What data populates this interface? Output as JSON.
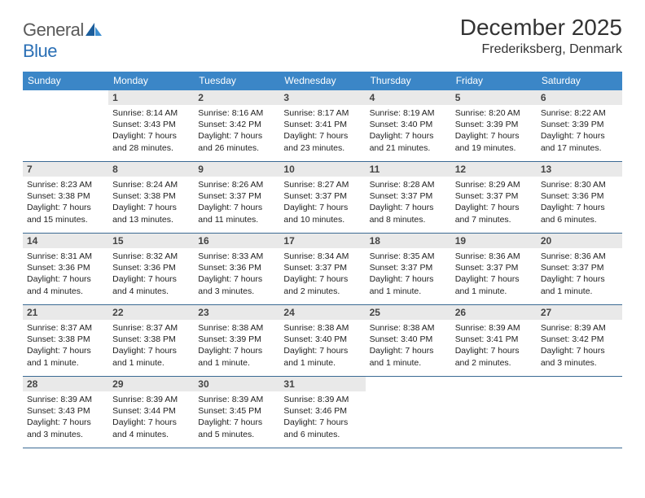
{
  "brand": {
    "part1": "General",
    "part2": "Blue"
  },
  "title": "December 2025",
  "location": "Frederiksberg, Denmark",
  "colors": {
    "header_bg": "#3b86c7",
    "header_fg": "#ffffff",
    "daynum_bg": "#e9e9e9",
    "rule": "#3b6a94",
    "logo_gray": "#5a5a5a",
    "logo_blue": "#2a6fb5",
    "sail_dark": "#1b5d9b",
    "sail_light": "#3d8fd1"
  },
  "weekdays": [
    "Sunday",
    "Monday",
    "Tuesday",
    "Wednesday",
    "Thursday",
    "Friday",
    "Saturday"
  ],
  "weeks": [
    [
      {
        "n": "",
        "sr": "",
        "ss": "",
        "dl": ""
      },
      {
        "n": "1",
        "sr": "Sunrise: 8:14 AM",
        "ss": "Sunset: 3:43 PM",
        "dl": "Daylight: 7 hours and 28 minutes."
      },
      {
        "n": "2",
        "sr": "Sunrise: 8:16 AM",
        "ss": "Sunset: 3:42 PM",
        "dl": "Daylight: 7 hours and 26 minutes."
      },
      {
        "n": "3",
        "sr": "Sunrise: 8:17 AM",
        "ss": "Sunset: 3:41 PM",
        "dl": "Daylight: 7 hours and 23 minutes."
      },
      {
        "n": "4",
        "sr": "Sunrise: 8:19 AM",
        "ss": "Sunset: 3:40 PM",
        "dl": "Daylight: 7 hours and 21 minutes."
      },
      {
        "n": "5",
        "sr": "Sunrise: 8:20 AM",
        "ss": "Sunset: 3:39 PM",
        "dl": "Daylight: 7 hours and 19 minutes."
      },
      {
        "n": "6",
        "sr": "Sunrise: 8:22 AM",
        "ss": "Sunset: 3:39 PM",
        "dl": "Daylight: 7 hours and 17 minutes."
      }
    ],
    [
      {
        "n": "7",
        "sr": "Sunrise: 8:23 AM",
        "ss": "Sunset: 3:38 PM",
        "dl": "Daylight: 7 hours and 15 minutes."
      },
      {
        "n": "8",
        "sr": "Sunrise: 8:24 AM",
        "ss": "Sunset: 3:38 PM",
        "dl": "Daylight: 7 hours and 13 minutes."
      },
      {
        "n": "9",
        "sr": "Sunrise: 8:26 AM",
        "ss": "Sunset: 3:37 PM",
        "dl": "Daylight: 7 hours and 11 minutes."
      },
      {
        "n": "10",
        "sr": "Sunrise: 8:27 AM",
        "ss": "Sunset: 3:37 PM",
        "dl": "Daylight: 7 hours and 10 minutes."
      },
      {
        "n": "11",
        "sr": "Sunrise: 8:28 AM",
        "ss": "Sunset: 3:37 PM",
        "dl": "Daylight: 7 hours and 8 minutes."
      },
      {
        "n": "12",
        "sr": "Sunrise: 8:29 AM",
        "ss": "Sunset: 3:37 PM",
        "dl": "Daylight: 7 hours and 7 minutes."
      },
      {
        "n": "13",
        "sr": "Sunrise: 8:30 AM",
        "ss": "Sunset: 3:36 PM",
        "dl": "Daylight: 7 hours and 6 minutes."
      }
    ],
    [
      {
        "n": "14",
        "sr": "Sunrise: 8:31 AM",
        "ss": "Sunset: 3:36 PM",
        "dl": "Daylight: 7 hours and 4 minutes."
      },
      {
        "n": "15",
        "sr": "Sunrise: 8:32 AM",
        "ss": "Sunset: 3:36 PM",
        "dl": "Daylight: 7 hours and 4 minutes."
      },
      {
        "n": "16",
        "sr": "Sunrise: 8:33 AM",
        "ss": "Sunset: 3:36 PM",
        "dl": "Daylight: 7 hours and 3 minutes."
      },
      {
        "n": "17",
        "sr": "Sunrise: 8:34 AM",
        "ss": "Sunset: 3:37 PM",
        "dl": "Daylight: 7 hours and 2 minutes."
      },
      {
        "n": "18",
        "sr": "Sunrise: 8:35 AM",
        "ss": "Sunset: 3:37 PM",
        "dl": "Daylight: 7 hours and 1 minute."
      },
      {
        "n": "19",
        "sr": "Sunrise: 8:36 AM",
        "ss": "Sunset: 3:37 PM",
        "dl": "Daylight: 7 hours and 1 minute."
      },
      {
        "n": "20",
        "sr": "Sunrise: 8:36 AM",
        "ss": "Sunset: 3:37 PM",
        "dl": "Daylight: 7 hours and 1 minute."
      }
    ],
    [
      {
        "n": "21",
        "sr": "Sunrise: 8:37 AM",
        "ss": "Sunset: 3:38 PM",
        "dl": "Daylight: 7 hours and 1 minute."
      },
      {
        "n": "22",
        "sr": "Sunrise: 8:37 AM",
        "ss": "Sunset: 3:38 PM",
        "dl": "Daylight: 7 hours and 1 minute."
      },
      {
        "n": "23",
        "sr": "Sunrise: 8:38 AM",
        "ss": "Sunset: 3:39 PM",
        "dl": "Daylight: 7 hours and 1 minute."
      },
      {
        "n": "24",
        "sr": "Sunrise: 8:38 AM",
        "ss": "Sunset: 3:40 PM",
        "dl": "Daylight: 7 hours and 1 minute."
      },
      {
        "n": "25",
        "sr": "Sunrise: 8:38 AM",
        "ss": "Sunset: 3:40 PM",
        "dl": "Daylight: 7 hours and 1 minute."
      },
      {
        "n": "26",
        "sr": "Sunrise: 8:39 AM",
        "ss": "Sunset: 3:41 PM",
        "dl": "Daylight: 7 hours and 2 minutes."
      },
      {
        "n": "27",
        "sr": "Sunrise: 8:39 AM",
        "ss": "Sunset: 3:42 PM",
        "dl": "Daylight: 7 hours and 3 minutes."
      }
    ],
    [
      {
        "n": "28",
        "sr": "Sunrise: 8:39 AM",
        "ss": "Sunset: 3:43 PM",
        "dl": "Daylight: 7 hours and 3 minutes."
      },
      {
        "n": "29",
        "sr": "Sunrise: 8:39 AM",
        "ss": "Sunset: 3:44 PM",
        "dl": "Daylight: 7 hours and 4 minutes."
      },
      {
        "n": "30",
        "sr": "Sunrise: 8:39 AM",
        "ss": "Sunset: 3:45 PM",
        "dl": "Daylight: 7 hours and 5 minutes."
      },
      {
        "n": "31",
        "sr": "Sunrise: 8:39 AM",
        "ss": "Sunset: 3:46 PM",
        "dl": "Daylight: 7 hours and 6 minutes."
      },
      {
        "n": "",
        "sr": "",
        "ss": "",
        "dl": ""
      },
      {
        "n": "",
        "sr": "",
        "ss": "",
        "dl": ""
      },
      {
        "n": "",
        "sr": "",
        "ss": "",
        "dl": ""
      }
    ]
  ]
}
